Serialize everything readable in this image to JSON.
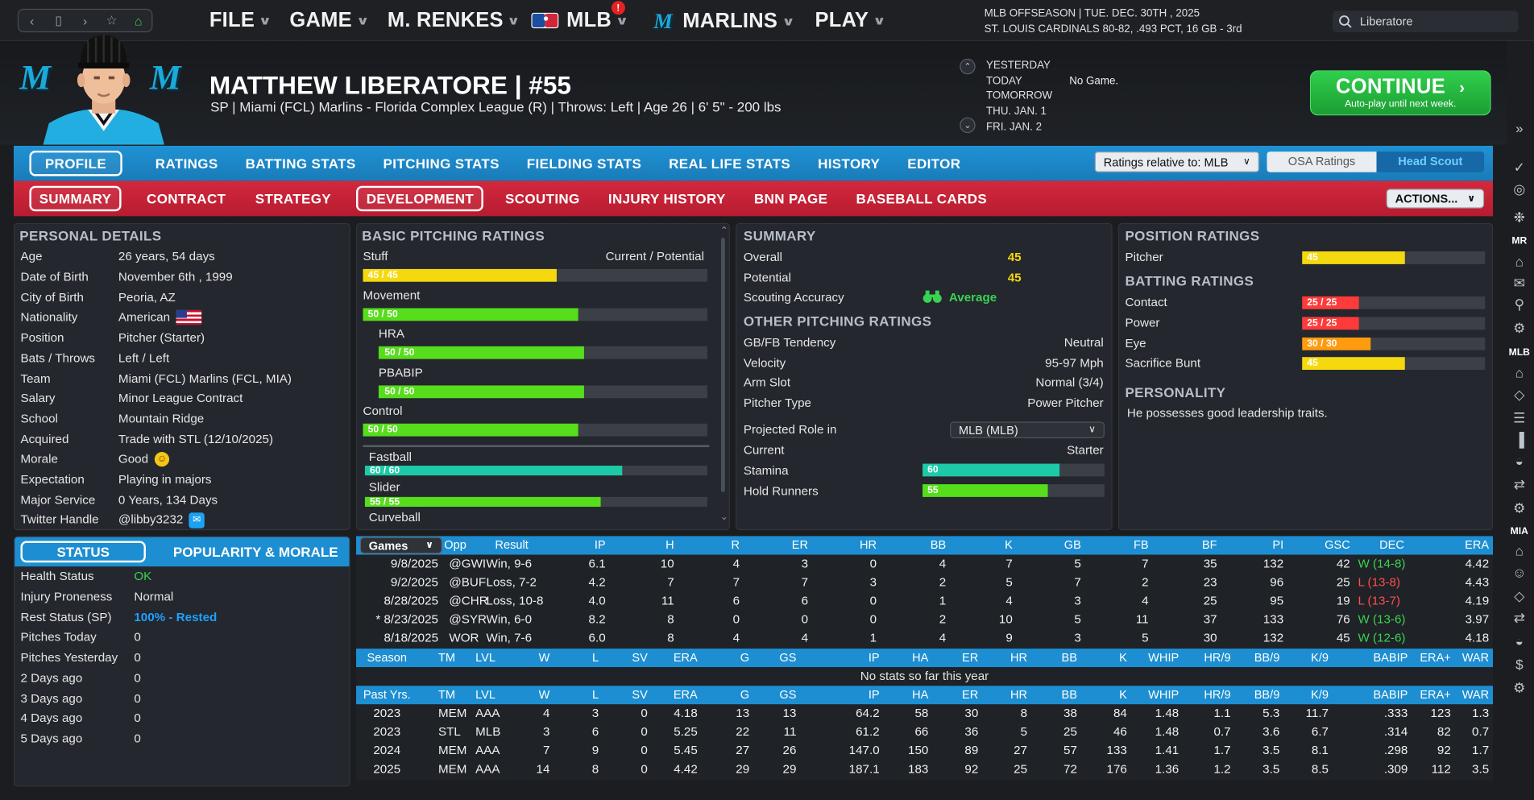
{
  "topbar": {
    "nav_icons": [
      "chevron-left",
      "bookmark",
      "chevron-right",
      "star",
      "home"
    ],
    "menus": [
      {
        "label": "FILE"
      },
      {
        "label": "GAME"
      },
      {
        "label": "M. RENKES"
      },
      {
        "label": "MLB"
      },
      {
        "label": "MARLINS"
      },
      {
        "label": "PLAY"
      }
    ],
    "mlb_badge": "!",
    "info_line1": "MLB OFFSEASON  |  TUE. DEC. 30TH , 2025",
    "info_line2": "ST. LOUIS CARDINALS  80-82, .493 PCT, 16 GB - 3rd",
    "search_value": "Liberatore"
  },
  "header": {
    "name": "MATTHEW LIBERATORE  |  #55",
    "line": "SP | Miami (FCL) Marlins - Florida Complex League (R)  |  Throws: Left  |  Age 26  |  6' 5\" - 200 lbs",
    "dates": [
      "YESTERDAY",
      "TODAY",
      "TOMORROW",
      "THU. JAN. 1",
      "FRI. JAN. 2"
    ],
    "today_game": "No Game.",
    "continue_label": "CONTINUE",
    "continue_sub": "Auto-play until next week."
  },
  "tabs1": [
    "PROFILE",
    "RATINGS",
    "BATTING STATS",
    "PITCHING STATS",
    "FIELDING STATS",
    "REAL LIFE STATS",
    "HISTORY",
    "EDITOR"
  ],
  "tabs1_active": "PROFILE",
  "ratings_relative": "Ratings relative to: MLB",
  "osa_label": "OSA Ratings",
  "head_scout_label": "Head Scout",
  "tabs2": [
    "SUMMARY",
    "CONTRACT",
    "STRATEGY",
    "DEVELOPMENT",
    "SCOUTING",
    "INJURY HISTORY",
    "BNN PAGE",
    "BASEBALL CARDS"
  ],
  "tabs2_active": [
    "SUMMARY",
    "DEVELOPMENT"
  ],
  "actions_label": "ACTIONS...",
  "personal": {
    "title": "PERSONAL DETAILS",
    "rows": [
      {
        "k": "Age",
        "v": "26 years, 54 days"
      },
      {
        "k": "Date of Birth",
        "v": "November 6th , 1999"
      },
      {
        "k": "City of Birth",
        "v": "Peoria, AZ"
      },
      {
        "k": "Nationality",
        "v": "American"
      },
      {
        "k": "Position",
        "v": "Pitcher (Starter)"
      },
      {
        "k": "Bats / Throws",
        "v": "Left / Left"
      },
      {
        "k": "Team",
        "v": "Miami (FCL) Marlins (FCL, MIA)"
      },
      {
        "k": "Salary",
        "v": "Minor League Contract"
      },
      {
        "k": "School",
        "v": "Mountain Ridge"
      },
      {
        "k": "Acquired",
        "v": "Trade with STL (12/10/2025)"
      },
      {
        "k": "Morale",
        "v": "Good"
      },
      {
        "k": "Expectation",
        "v": "Playing in majors"
      },
      {
        "k": "Major Service",
        "v": "0 Years, 134 Days"
      },
      {
        "k": "Twitter Handle",
        "v": "@libby3232"
      }
    ]
  },
  "status": {
    "tab_status": "STATUS",
    "tab_pop": "POPULARITY & MORALE",
    "rows": [
      {
        "k": "Health Status",
        "v": "OK"
      },
      {
        "k": "Injury Proneness",
        "v": "Normal"
      },
      {
        "k": "Rest Status (SP)",
        "v": "100% - Rested"
      },
      {
        "k": "Pitches Today",
        "v": "0"
      },
      {
        "k": "Pitches Yesterday",
        "v": "0"
      },
      {
        "k": "2 Days ago",
        "v": "0"
      },
      {
        "k": "3 Days ago",
        "v": "0"
      },
      {
        "k": "4 Days ago",
        "v": "0"
      },
      {
        "k": "5 Days ago",
        "v": "0"
      }
    ]
  },
  "basic": {
    "title": "BASIC PITCHING RATINGS",
    "cur_pot": "Current / Potential",
    "stuff": {
      "label": "Stuff",
      "text": "45 / 45",
      "value": 45
    },
    "movement": {
      "label": "Movement",
      "text": "50 / 50",
      "value": 50
    },
    "hra": {
      "label": "HRA",
      "text": "50 / 50",
      "value": 50
    },
    "pbabip": {
      "label": "PBABIP",
      "text": "50 / 50",
      "value": 50
    },
    "control": {
      "label": "Control",
      "text": "50 / 50",
      "value": 50
    },
    "fastball": {
      "label": "Fastball",
      "text": "60 / 60",
      "value": 60
    },
    "slider": {
      "label": "Slider",
      "text": "55 / 55",
      "value": 55
    },
    "curveball": {
      "label": "Curveball"
    }
  },
  "summary": {
    "title": "SUMMARY",
    "overall_label": "Overall",
    "overall": "45",
    "potential_label": "Potential",
    "potential": "45",
    "scout_label": "Scouting Accuracy",
    "scout": "Average",
    "other_title": "OTHER PITCHING RATINGS",
    "gbfb_label": "GB/FB Tendency",
    "gbfb": "Neutral",
    "velo_label": "Velocity",
    "velo": "95-97 Mph",
    "arm_label": "Arm Slot",
    "arm": "Normal (3/4)",
    "ptype_label": "Pitcher Type",
    "ptype": "Power Pitcher",
    "role_label": "Projected Role in",
    "role_select": "MLB (MLB)",
    "current_label": "Current",
    "current": "Starter",
    "stamina": {
      "label": "Stamina",
      "text": "60",
      "value": 60
    },
    "hold": {
      "label": "Hold Runners",
      "text": "55",
      "value": 55
    }
  },
  "position": {
    "title": "POSITION RATINGS",
    "pitcher": {
      "label": "Pitcher",
      "text": "45",
      "value": 45
    },
    "bat_title": "BATTING RATINGS",
    "contact": {
      "label": "Contact",
      "text": "25 / 25",
      "value": 25
    },
    "power": {
      "label": "Power",
      "text": "25 / 25",
      "value": 25
    },
    "eye": {
      "label": "Eye",
      "text": "30 / 30",
      "value": 30
    },
    "bunt": {
      "label": "Sacrifice Bunt",
      "text": "45",
      "value": 45
    },
    "personality_title": "PERSONALITY",
    "personality": "He possesses good leadership traits."
  },
  "games": {
    "select": "Games",
    "headers": [
      "Opp",
      "Result",
      "IP",
      "H",
      "R",
      "ER",
      "HR",
      "BB",
      "K",
      "GB",
      "FB",
      "BF",
      "PI",
      "GSC",
      "DEC",
      "ERA"
    ],
    "rows": [
      {
        "date": "9/8/2025",
        "opp": "@GWI",
        "res": "Win, 9-6",
        "ip": "6.1",
        "h": "10",
        "r": "4",
        "er": "3",
        "hr": "0",
        "bb": "4",
        "k": "7",
        "gb": "5",
        "fb": "7",
        "bf": "35",
        "pi": "132",
        "gsc": "42",
        "dec": "W (14-8)",
        "era": "4.42"
      },
      {
        "date": "9/2/2025",
        "opp": "@BUF",
        "res": "Loss, 7-2",
        "ip": "4.2",
        "h": "7",
        "r": "7",
        "er": "7",
        "hr": "3",
        "bb": "2",
        "k": "5",
        "gb": "7",
        "fb": "2",
        "bf": "23",
        "pi": "96",
        "gsc": "25",
        "dec": "L (13-8)",
        "era": "4.43"
      },
      {
        "date": "8/28/2025",
        "opp": "@CHR",
        "res": "Loss, 10-8",
        "ip": "4.0",
        "h": "11",
        "r": "6",
        "er": "6",
        "hr": "0",
        "bb": "1",
        "k": "4",
        "gb": "3",
        "fb": "4",
        "bf": "25",
        "pi": "95",
        "gsc": "19",
        "dec": "L (13-7)",
        "era": "4.19"
      },
      {
        "date": "* 8/23/2025",
        "opp": "@SYR",
        "res": "Win, 6-0",
        "ip": "8.2",
        "h": "8",
        "r": "0",
        "er": "0",
        "hr": "0",
        "bb": "2",
        "k": "10",
        "gb": "5",
        "fb": "11",
        "bf": "37",
        "pi": "133",
        "gsc": "76",
        "dec": "W (13-6)",
        "era": "3.97"
      },
      {
        "date": "8/18/2025",
        "opp": "WOR",
        "res": "Win, 7-6",
        "ip": "6.0",
        "h": "8",
        "r": "4",
        "er": "4",
        "hr": "1",
        "bb": "4",
        "k": "9",
        "gb": "3",
        "fb": "5",
        "bf": "30",
        "pi": "132",
        "gsc": "45",
        "dec": "W (12-6)",
        "era": "4.18"
      }
    ]
  },
  "season": {
    "headers": [
      "Season",
      "TM",
      "LVL",
      "W",
      "L",
      "SV",
      "ERA",
      "G",
      "GS",
      "IP",
      "HA",
      "ER",
      "HR",
      "BB",
      "K",
      "WHIP",
      "HR/9",
      "BB/9",
      "K/9",
      "BABIP",
      "ERA+",
      "WAR"
    ],
    "empty": "No stats so far this year"
  },
  "past": {
    "headers": [
      "Past Yrs.",
      "TM",
      "LVL",
      "W",
      "L",
      "SV",
      "ERA",
      "G",
      "GS",
      "IP",
      "HA",
      "ER",
      "HR",
      "BB",
      "K",
      "WHIP",
      "HR/9",
      "BB/9",
      "K/9",
      "BABIP",
      "ERA+",
      "WAR"
    ],
    "rows": [
      [
        "2023",
        "MEM",
        "AAA",
        "4",
        "3",
        "0",
        "4.18",
        "13",
        "13",
        "64.2",
        "58",
        "30",
        "8",
        "38",
        "84",
        "1.48",
        "1.1",
        "5.3",
        "11.7",
        ".333",
        "123",
        "1.3"
      ],
      [
        "2023",
        "STL",
        "MLB",
        "3",
        "6",
        "0",
        "5.25",
        "22",
        "11",
        "61.2",
        "66",
        "36",
        "5",
        "25",
        "46",
        "1.48",
        "0.7",
        "3.6",
        "6.7",
        ".314",
        "82",
        "0.7"
      ],
      [
        "2024",
        "MEM",
        "AAA",
        "7",
        "9",
        "0",
        "5.45",
        "27",
        "26",
        "147.0",
        "150",
        "89",
        "27",
        "57",
        "133",
        "1.41",
        "1.7",
        "3.5",
        "8.1",
        ".298",
        "92",
        "1.7"
      ],
      [
        "2025",
        "MEM",
        "AAA",
        "14",
        "8",
        "0",
        "4.42",
        "29",
        "29",
        "187.1",
        "183",
        "92",
        "25",
        "72",
        "176",
        "1.36",
        "1.2",
        "3.5",
        "8.5",
        ".309",
        "112",
        "3.5"
      ]
    ]
  },
  "rail": {
    "mr": "MR",
    "mlb": "MLB",
    "mia": "MIA"
  },
  "colors": {
    "blue_tab": "#1f92d5",
    "red_tab": "#c8233a",
    "yellow": "#f5d90f",
    "green": "#56dd1c",
    "teal": "#1ccaa8",
    "red_bar": "#ff3a3a",
    "orange": "#ff9b0f",
    "continue": "#27bf44"
  }
}
